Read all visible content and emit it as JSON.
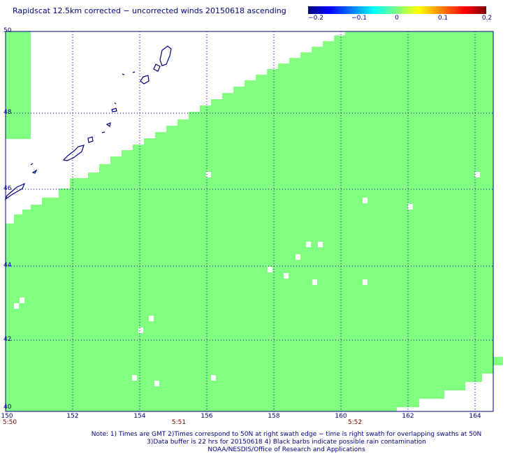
{
  "title": "Rapidscat 12.5km corrected − uncorrected winds 20150618 ascending",
  "colorbar": {
    "labels": [
      "−0.2",
      "−0.1",
      "0",
      "0.1",
      "0.2"
    ],
    "colors": [
      "#00007f",
      "#0000ff",
      "#00ffff",
      "#80ff80",
      "#ffff00",
      "#ff0000",
      "#7f0000"
    ]
  },
  "map": {
    "lat_labels": [
      "50",
      "48",
      "46",
      "44",
      "42",
      "40"
    ],
    "lon_labels": [
      "150",
      "152",
      "154",
      "156",
      "158",
      "160",
      "162",
      "164"
    ],
    "time_labels": [
      "5:50",
      "5:51",
      "5:52"
    ],
    "lat_range": [
      40,
      50
    ],
    "lon_range": [
      150,
      165
    ],
    "swath_color": "#80ff80",
    "grid_color": "#000080",
    "coastline_color": "#000080",
    "land_region": "Kuril Islands"
  },
  "notes": {
    "line1": "Note: 1) Times are GMT 2)Times correspond to 50N at right swath edge − time is right swath for overlapping swaths at 50N",
    "line2": "3)Data buffer is 22 hrs for 20150618 4) Black barbs indicate possible rain contamination",
    "line3": "NOAA/NESDIS/Office of Research and Applications"
  }
}
